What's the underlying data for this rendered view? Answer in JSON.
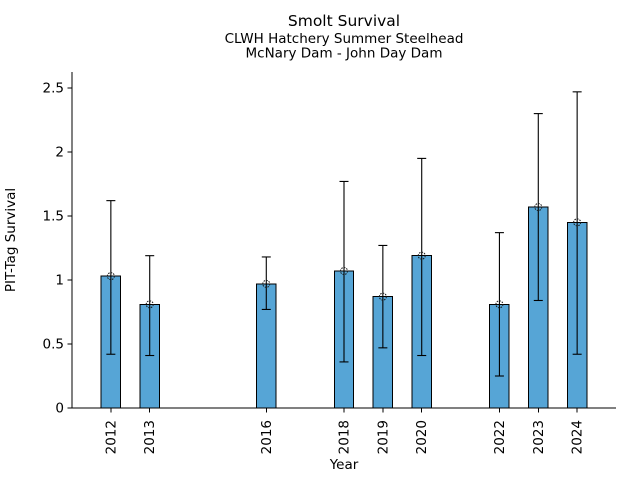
{
  "chart_data": {
    "type": "bar",
    "title": "Smolt Survival",
    "subtitle1": "CLWH Hatchery Summer Steelhead",
    "subtitle2": "McNary Dam - John Day Dam",
    "xlabel": "Year",
    "ylabel": "PIT-Tag Survival",
    "categories": [
      "2012",
      "2013",
      "2016",
      "2018",
      "2019",
      "2020",
      "2022",
      "2023",
      "2024"
    ],
    "values": [
      1.03,
      0.81,
      0.97,
      1.07,
      0.87,
      1.19,
      0.81,
      1.57,
      1.45
    ],
    "error_low": [
      0.42,
      0.41,
      0.77,
      0.36,
      0.47,
      0.41,
      0.25,
      0.84,
      0.42
    ],
    "error_high": [
      1.62,
      1.19,
      1.18,
      1.77,
      1.27,
      1.95,
      1.37,
      2.3,
      2.47
    ],
    "ytick_labels": [
      "0",
      "0.5",
      "1",
      "1.5",
      "2",
      "2.5"
    ],
    "yticks": [
      0,
      0.5,
      1,
      1.5,
      2,
      2.5
    ],
    "ylim": [
      0,
      2.625
    ],
    "xlim": [
      2011,
      2025
    ],
    "bar_width_years": 0.5,
    "marker": "open-circle",
    "error_bars": true,
    "grid": false,
    "legend": null,
    "colors": {
      "bar_fill": "#56A5D6",
      "bar_edge": "#000000",
      "error_bar": "#000000",
      "axis": "#000000",
      "text": "#000000",
      "background": "#ffffff"
    }
  }
}
